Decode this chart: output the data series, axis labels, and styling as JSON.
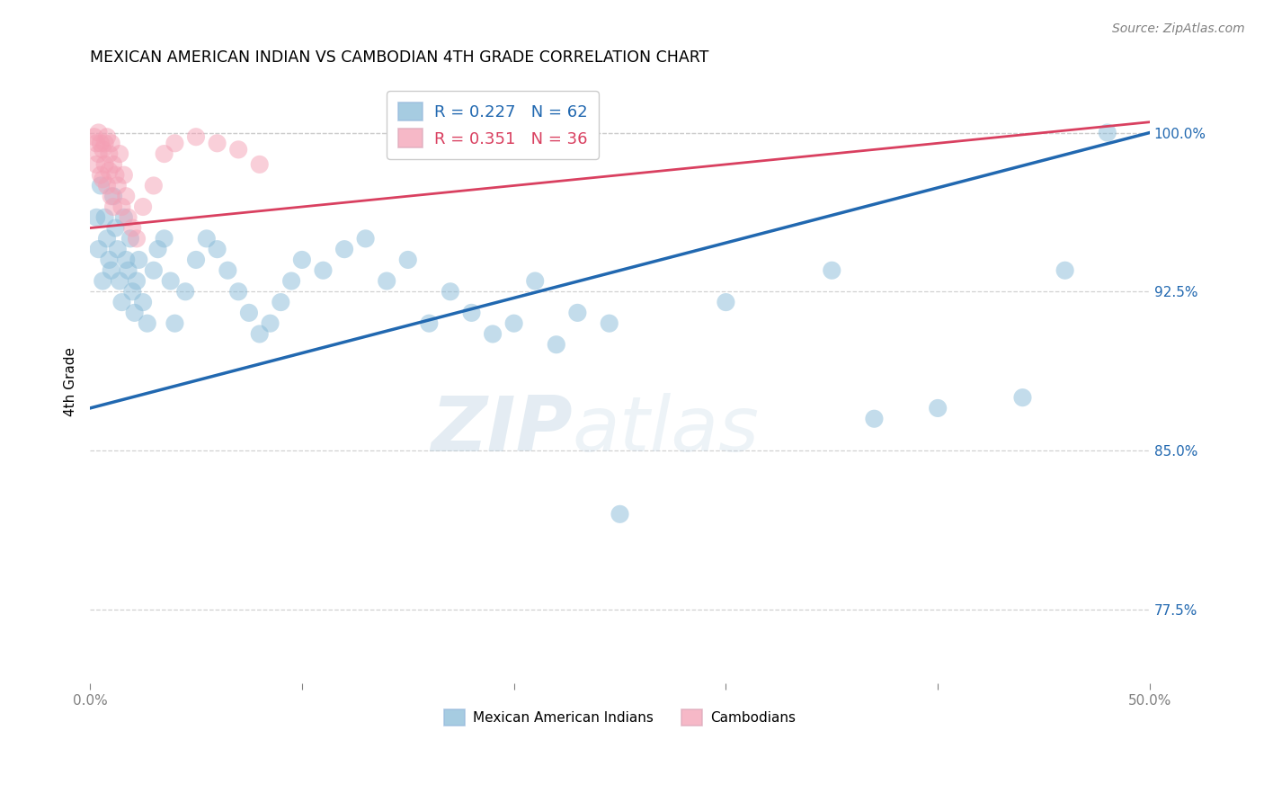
{
  "title": "MEXICAN AMERICAN INDIAN VS CAMBODIAN 4TH GRADE CORRELATION CHART",
  "source": "Source: ZipAtlas.com",
  "ylabel": "4th Grade",
  "xlim": [
    0.0,
    50.0
  ],
  "ylim": [
    74.0,
    102.5
  ],
  "yticks": [
    77.5,
    85.0,
    92.5,
    100.0
  ],
  "xticks": [
    0.0,
    10.0,
    20.0,
    30.0,
    40.0,
    50.0
  ],
  "blue_R": 0.227,
  "blue_N": 62,
  "pink_R": 0.351,
  "pink_N": 36,
  "blue_color": "#88bbd8",
  "pink_color": "#f4a0b5",
  "blue_line_color": "#2168b0",
  "pink_line_color": "#d94060",
  "legend_label_blue": "Mexican American Indians",
  "legend_label_pink": "Cambodians",
  "blue_points": [
    [
      0.3,
      96.0
    ],
    [
      0.4,
      94.5
    ],
    [
      0.5,
      97.5
    ],
    [
      0.6,
      93.0
    ],
    [
      0.7,
      96.0
    ],
    [
      0.8,
      95.0
    ],
    [
      0.9,
      94.0
    ],
    [
      1.0,
      93.5
    ],
    [
      1.1,
      97.0
    ],
    [
      1.2,
      95.5
    ],
    [
      1.3,
      94.5
    ],
    [
      1.4,
      93.0
    ],
    [
      1.5,
      92.0
    ],
    [
      1.6,
      96.0
    ],
    [
      1.7,
      94.0
    ],
    [
      1.8,
      93.5
    ],
    [
      1.9,
      95.0
    ],
    [
      2.0,
      92.5
    ],
    [
      2.1,
      91.5
    ],
    [
      2.2,
      93.0
    ],
    [
      2.3,
      94.0
    ],
    [
      2.5,
      92.0
    ],
    [
      2.7,
      91.0
    ],
    [
      3.0,
      93.5
    ],
    [
      3.2,
      94.5
    ],
    [
      3.5,
      95.0
    ],
    [
      3.8,
      93.0
    ],
    [
      4.0,
      91.0
    ],
    [
      4.5,
      92.5
    ],
    [
      5.0,
      94.0
    ],
    [
      5.5,
      95.0
    ],
    [
      6.0,
      94.5
    ],
    [
      6.5,
      93.5
    ],
    [
      7.0,
      92.5
    ],
    [
      7.5,
      91.5
    ],
    [
      8.0,
      90.5
    ],
    [
      8.5,
      91.0
    ],
    [
      9.0,
      92.0
    ],
    [
      9.5,
      93.0
    ],
    [
      10.0,
      94.0
    ],
    [
      11.0,
      93.5
    ],
    [
      12.0,
      94.5
    ],
    [
      13.0,
      95.0
    ],
    [
      14.0,
      93.0
    ],
    [
      15.0,
      94.0
    ],
    [
      16.0,
      91.0
    ],
    [
      17.0,
      92.5
    ],
    [
      18.0,
      91.5
    ],
    [
      19.0,
      90.5
    ],
    [
      20.0,
      91.0
    ],
    [
      21.0,
      93.0
    ],
    [
      22.0,
      90.0
    ],
    [
      23.0,
      91.5
    ],
    [
      24.5,
      91.0
    ],
    [
      25.0,
      82.0
    ],
    [
      30.0,
      92.0
    ],
    [
      35.0,
      93.5
    ],
    [
      37.0,
      86.5
    ],
    [
      40.0,
      87.0
    ],
    [
      44.0,
      87.5
    ],
    [
      46.0,
      93.5
    ],
    [
      48.0,
      100.0
    ]
  ],
  "pink_points": [
    [
      0.2,
      99.8
    ],
    [
      0.3,
      99.5
    ],
    [
      0.3,
      98.5
    ],
    [
      0.4,
      100.0
    ],
    [
      0.4,
      99.0
    ],
    [
      0.5,
      99.5
    ],
    [
      0.5,
      98.0
    ],
    [
      0.6,
      99.2
    ],
    [
      0.6,
      97.8
    ],
    [
      0.7,
      99.5
    ],
    [
      0.7,
      98.5
    ],
    [
      0.8,
      99.8
    ],
    [
      0.8,
      97.5
    ],
    [
      0.9,
      99.0
    ],
    [
      0.9,
      98.2
    ],
    [
      1.0,
      99.5
    ],
    [
      1.0,
      97.0
    ],
    [
      1.1,
      98.5
    ],
    [
      1.1,
      96.5
    ],
    [
      1.2,
      98.0
    ],
    [
      1.3,
      97.5
    ],
    [
      1.4,
      99.0
    ],
    [
      1.5,
      96.5
    ],
    [
      1.6,
      98.0
    ],
    [
      1.7,
      97.0
    ],
    [
      1.8,
      96.0
    ],
    [
      2.0,
      95.5
    ],
    [
      2.2,
      95.0
    ],
    [
      2.5,
      96.5
    ],
    [
      3.0,
      97.5
    ],
    [
      3.5,
      99.0
    ],
    [
      4.0,
      99.5
    ],
    [
      5.0,
      99.8
    ],
    [
      6.0,
      99.5
    ],
    [
      7.0,
      99.2
    ],
    [
      8.0,
      98.5
    ]
  ],
  "watermark_zip": "ZIP",
  "watermark_atlas": "atlas",
  "grid_color": "#cccccc",
  "background_color": "#ffffff"
}
